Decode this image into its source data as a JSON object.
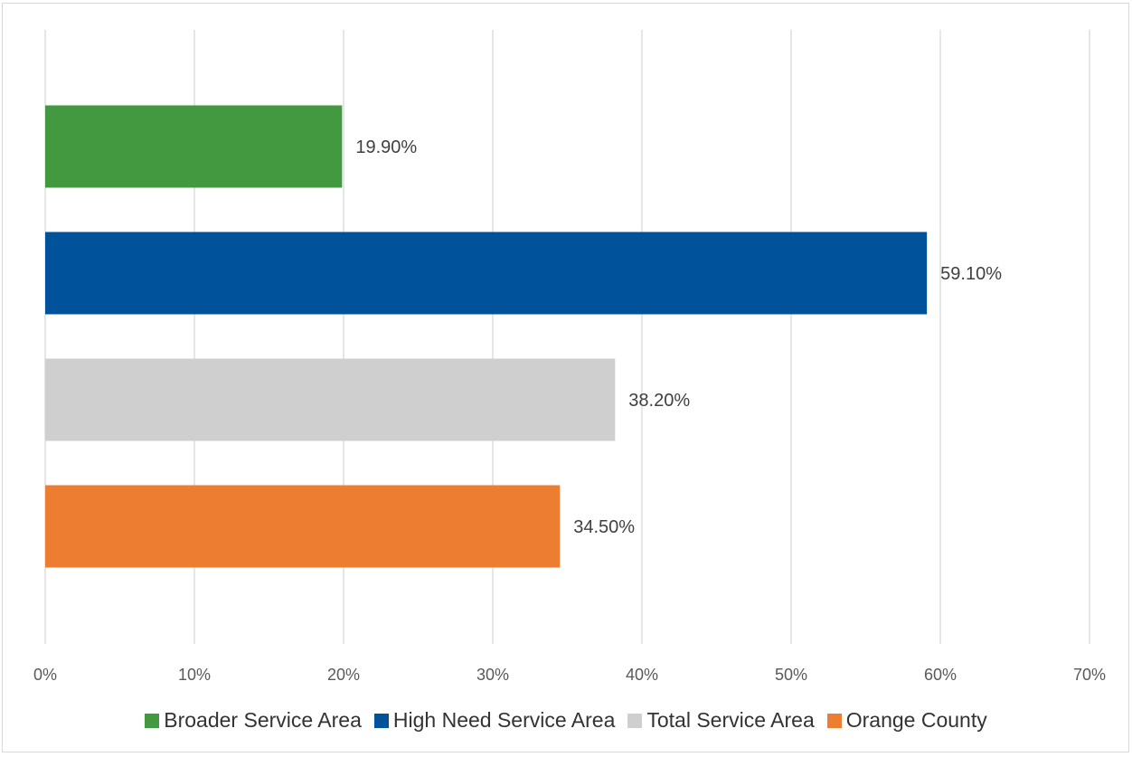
{
  "chart_data": {
    "type": "bar",
    "orientation": "horizontal",
    "categories": [
      "Broader Service Area",
      "High Need Service Area",
      "Total Service Area",
      "Orange County"
    ],
    "values": [
      19.9,
      59.1,
      38.2,
      34.5
    ],
    "value_labels": [
      "19.90%",
      "59.10%",
      "38.20%",
      "34.50%"
    ],
    "colors": [
      "#43993f",
      "#00529b",
      "#d0cfcf",
      "#ed7d31"
    ],
    "xlim": [
      0,
      70
    ],
    "x_ticks": [
      0,
      10,
      20,
      30,
      40,
      50,
      60,
      70
    ],
    "x_tick_labels": [
      "0%",
      "10%",
      "20%",
      "30%",
      "40%",
      "50%",
      "60%",
      "70%"
    ],
    "grid": "vertical",
    "legend_position": "bottom",
    "title": "",
    "xlabel": "",
    "ylabel": ""
  },
  "legend": [
    {
      "label": "Broader Service Area",
      "color": "#43993f"
    },
    {
      "label": "High Need Service Area",
      "color": "#00529b"
    },
    {
      "label": "Total Service Area",
      "color": "#d0cfcf"
    },
    {
      "label": "Orange County",
      "color": "#ed7d31"
    }
  ]
}
